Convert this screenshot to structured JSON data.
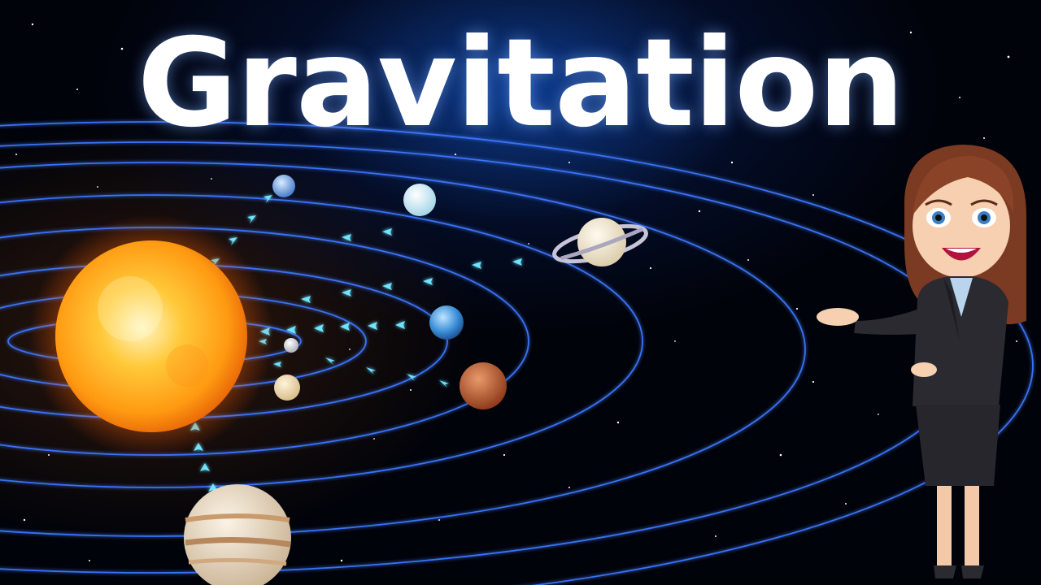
{
  "title": "Gravitation"
}
